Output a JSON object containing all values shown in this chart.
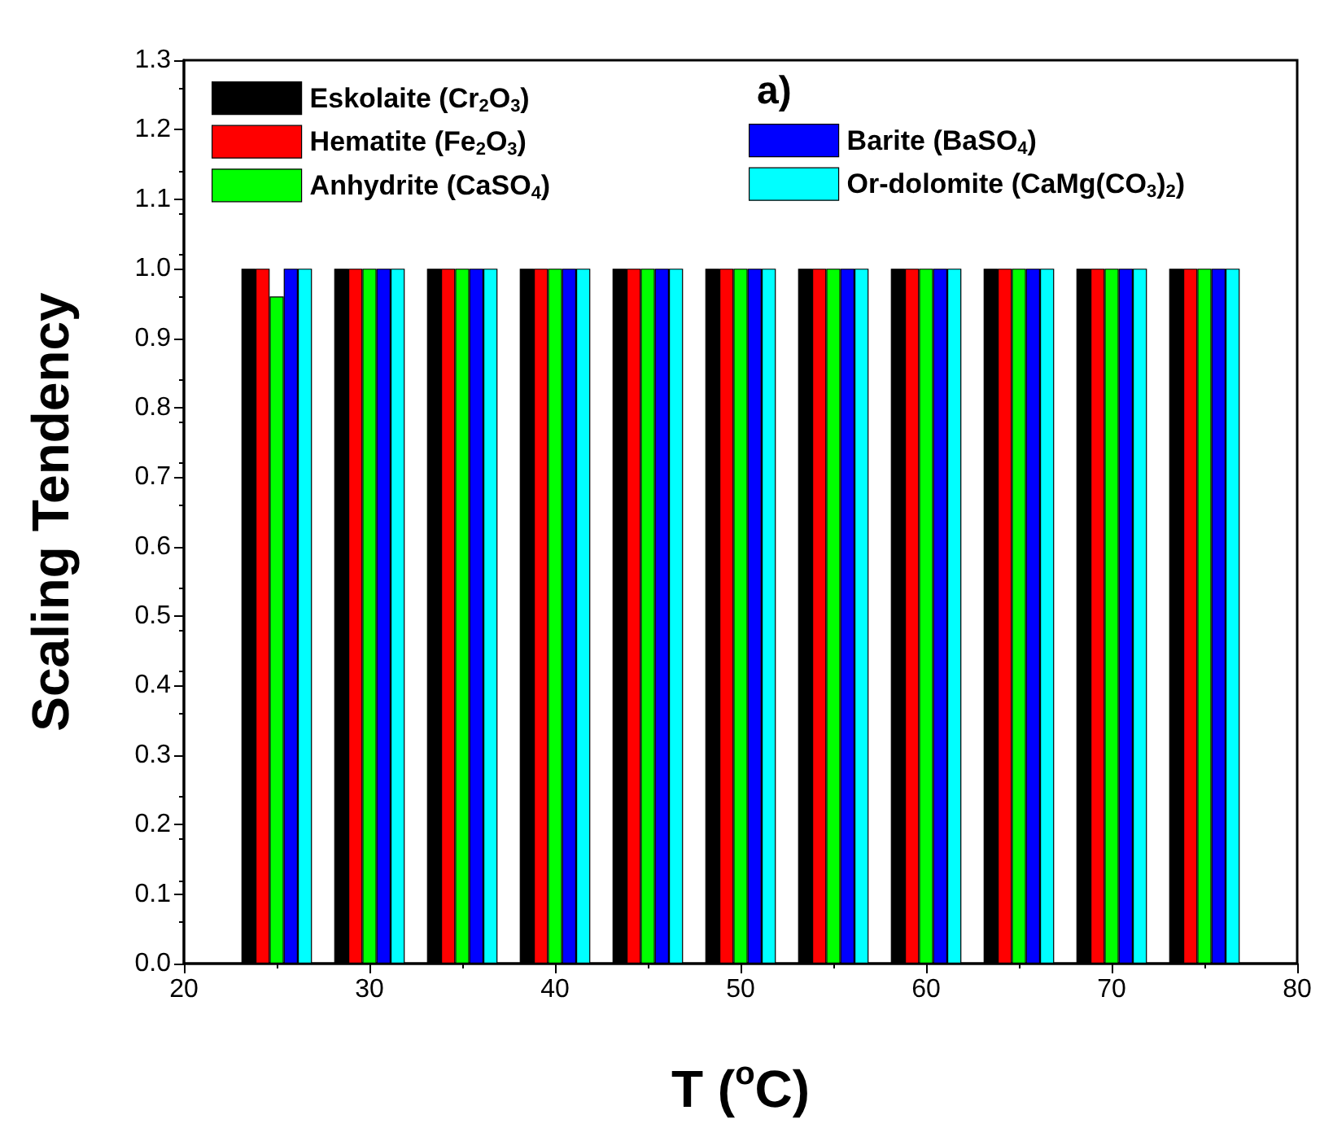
{
  "chart_data": {
    "type": "bar",
    "xlabel": "T ($^{o}$C)",
    "ylabel": "Scaling Tendency",
    "annotations": [
      "a)"
    ],
    "x": [
      25,
      30,
      35,
      40,
      45,
      50,
      55,
      60,
      65,
      70,
      75
    ],
    "series": [
      {
        "name": "Eskolaite (Cr$_{2}$O$_{3}$)",
        "color": "#000000",
        "values": [
          1,
          1,
          1,
          1,
          1,
          1,
          1,
          1,
          1,
          1,
          1
        ]
      },
      {
        "name": "Hematite (Fe$_{2}$O$_{3}$)",
        "color": "#ff0000",
        "values": [
          1,
          1,
          1,
          1,
          1,
          1,
          1,
          1,
          1,
          1,
          1
        ]
      },
      {
        "name": "Anhydrite (CaSO$_{4}$)",
        "color": "#00ff00",
        "values": [
          0.96,
          1,
          1,
          1,
          1,
          1,
          1,
          1,
          1,
          1,
          1
        ]
      },
      {
        "name": "Barite (BaSO$_{4}$)",
        "color": "#0000ff",
        "values": [
          1,
          1,
          1,
          1,
          1,
          1,
          1,
          1,
          1,
          1,
          1
        ]
      },
      {
        "name": "Or-dolomite (CaMg(CO$_{3}$)$_{2}$)",
        "color": "#00ffff",
        "values": [
          1,
          1,
          1,
          1,
          1,
          1,
          1,
          1,
          1,
          1,
          1
        ]
      }
    ],
    "xlim": [
      20,
      80
    ],
    "xticks": [
      20,
      30,
      40,
      50,
      60,
      70,
      80
    ],
    "ylim": [
      0,
      1.3
    ],
    "yticks": [
      {
        "value": 0,
        "label": "0.0"
      },
      {
        "value": 0.1,
        "label": "0.1"
      },
      {
        "value": 0.2,
        "label": "0.2"
      },
      {
        "value": 0.3,
        "label": "0.3"
      },
      {
        "value": 0.4,
        "label": "0.4"
      },
      {
        "value": 0.5,
        "label": "0.5"
      },
      {
        "value": 0.6,
        "label": "0.6"
      },
      {
        "value": 0.7,
        "label": "0.7"
      },
      {
        "value": 0.8,
        "label": "0.8"
      },
      {
        "value": 0.9,
        "label": "0.9"
      },
      {
        "value": 1,
        "label": "1.0"
      },
      {
        "value": 1.1,
        "label": "1.1"
      },
      {
        "value": 1.2,
        "label": "1.2"
      },
      {
        "value": 1.3,
        "label": "1.3"
      }
    ],
    "grid": false,
    "legend": "top left"
  }
}
